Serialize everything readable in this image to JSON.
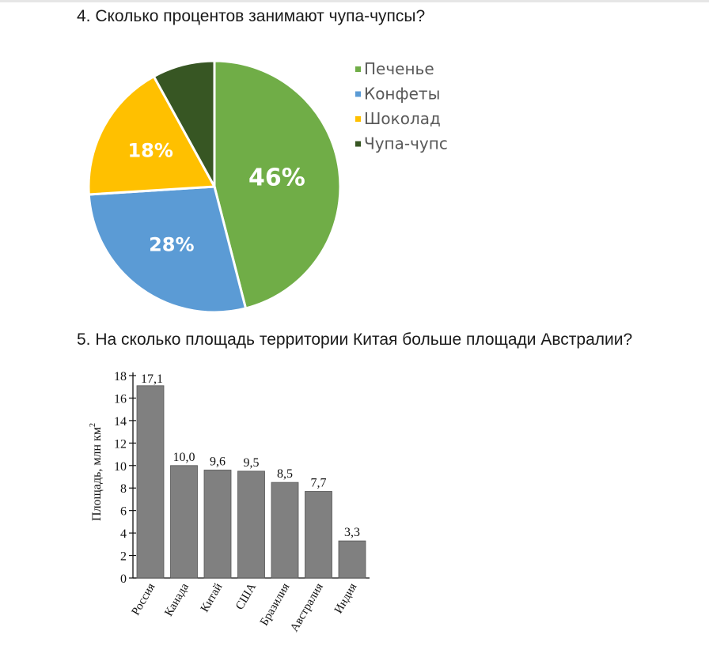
{
  "questions": {
    "q4": "4. Сколько процентов занимают чупа-чупсы?",
    "q5": "5. На сколько площадь территории Китая больше площади Австралии?"
  },
  "chart_data": [
    {
      "type": "pie",
      "slices": [
        {
          "name": "Печенье",
          "value": 46,
          "label": "46%",
          "color": "#70ad47"
        },
        {
          "name": "Конфеты",
          "value": 28,
          "label": "28%",
          "color": "#5b9bd5"
        },
        {
          "name": "Шоколад",
          "value": 18,
          "label": "18%",
          "color": "#ffc000"
        },
        {
          "name": "Чупа-чупс",
          "value": 8,
          "label": "",
          "color": "#375623"
        }
      ],
      "legend_position": "right"
    },
    {
      "type": "bar",
      "categories": [
        "Россия",
        "Канада",
        "Китай",
        "США",
        "Бразилия",
        "Австралия",
        "Индия"
      ],
      "values": [
        17.1,
        10.0,
        9.6,
        9.5,
        8.5,
        7.7,
        3.3
      ],
      "value_labels": [
        "17,1",
        "10,0",
        "9,6",
        "9,5",
        "8,5",
        "7,7",
        "3,3"
      ],
      "ylabel": "Площадь, млн км",
      "ylabel_superscript": "2",
      "yticks": [
        "0",
        "2",
        "4",
        "6",
        "8",
        "10",
        "12",
        "14",
        "16",
        "18"
      ],
      "ylim": [
        0,
        18
      ],
      "bar_color": "#808080"
    }
  ]
}
